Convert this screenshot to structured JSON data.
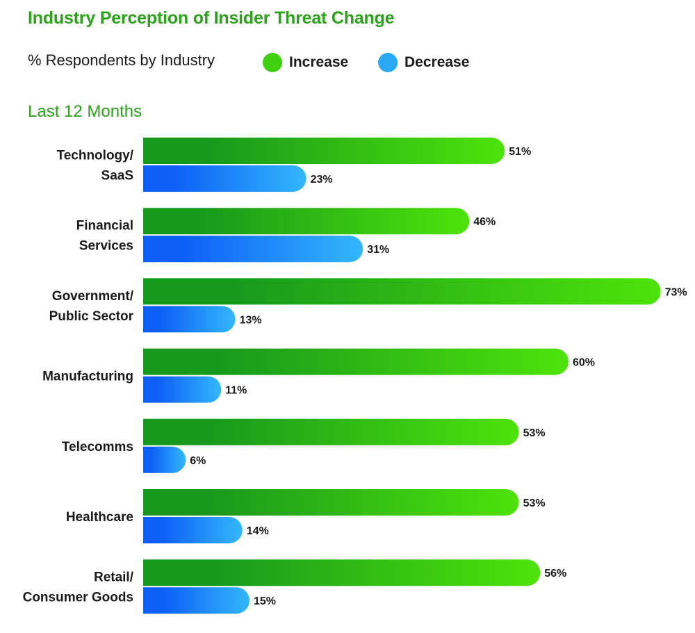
{
  "title": "Industry Perception of Insider Threat Change",
  "subtitle": "% Respondents by Industry",
  "period_label": "Last 12 Months",
  "legend": [
    {
      "label": "Increase",
      "color": "#3fd10f"
    },
    {
      "label": "Decrease",
      "color": "#2aa9f5"
    }
  ],
  "colors": {
    "increase_start": "#169a1c",
    "increase_end": "#4ee30a",
    "decrease_start": "#0d5ff7",
    "decrease_end": "#33b7fb"
  },
  "chart_data": {
    "type": "bar",
    "orientation": "horizontal",
    "title": "Industry Perception of Insider Threat Change",
    "categories": [
      [
        "Technology/",
        "SaaS"
      ],
      [
        "Financial",
        "Services"
      ],
      [
        "Government/",
        "Public Sector"
      ],
      [
        "Manufacturing"
      ],
      [
        "Telecomms"
      ],
      [
        "Healthcare"
      ],
      [
        "Retail/",
        "Consumer Goods"
      ]
    ],
    "series": [
      {
        "name": "Increase",
        "values": [
          51,
          46,
          73,
          60,
          53,
          53,
          56
        ]
      },
      {
        "name": "Decrease",
        "values": [
          23,
          31,
          13,
          11,
          6,
          14,
          15
        ]
      }
    ],
    "value_suffix": "%",
    "xlim": [
      0,
      73
    ],
    "grid": false,
    "legend_position": "top"
  }
}
